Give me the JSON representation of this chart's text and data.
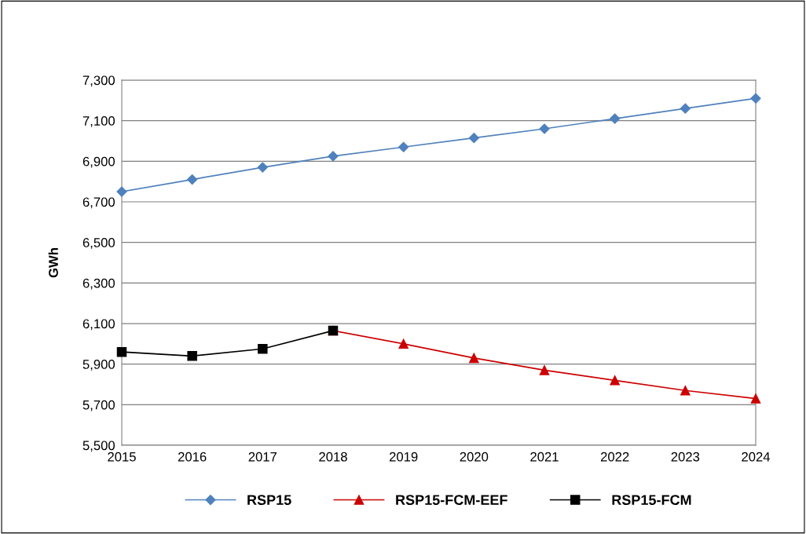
{
  "chart_data": {
    "type": "line",
    "ylabel": "GWh",
    "series": [
      {
        "name": "RSP15",
        "color": "#4f81bd",
        "marker": "diamond",
        "x": [
          2015,
          2016,
          2017,
          2018,
          2019,
          2020,
          2021,
          2022,
          2023,
          2024
        ],
        "values": [
          6750,
          6810,
          6870,
          6925,
          6970,
          7015,
          7060,
          7110,
          7160,
          7210
        ]
      },
      {
        "name": "RSP15-FCM-EEF",
        "color": "#cc0000",
        "marker": "triangle",
        "x": [
          2018,
          2019,
          2020,
          2021,
          2022,
          2023,
          2024
        ],
        "values": [
          6065,
          6000,
          5930,
          5870,
          5820,
          5770,
          5730
        ]
      },
      {
        "name": "RSP15-FCM",
        "color": "#000000",
        "marker": "square",
        "x": [
          2015,
          2016,
          2017,
          2018
        ],
        "values": [
          5960,
          5940,
          5975,
          6065
        ]
      }
    ],
    "xlim": [
      2015,
      2024
    ],
    "xticks": [
      2015,
      2016,
      2017,
      2018,
      2019,
      2020,
      2021,
      2022,
      2023,
      2024
    ],
    "ylim": [
      5500,
      7300
    ],
    "yticks": [
      {
        "value": 5500,
        "label": "5,500"
      },
      {
        "value": 5700,
        "label": "5,700"
      },
      {
        "value": 5900,
        "label": "5,900"
      },
      {
        "value": 6100,
        "label": "6,100"
      },
      {
        "value": 6300,
        "label": "6,300"
      },
      {
        "value": 6500,
        "label": "6,500"
      },
      {
        "value": 6700,
        "label": "6,700"
      },
      {
        "value": 6900,
        "label": "6,900"
      },
      {
        "value": 7100,
        "label": "7,100"
      },
      {
        "value": 7300,
        "label": "7,300"
      }
    ],
    "grid": "y",
    "legend": "bottom",
    "line_style": "solid"
  }
}
